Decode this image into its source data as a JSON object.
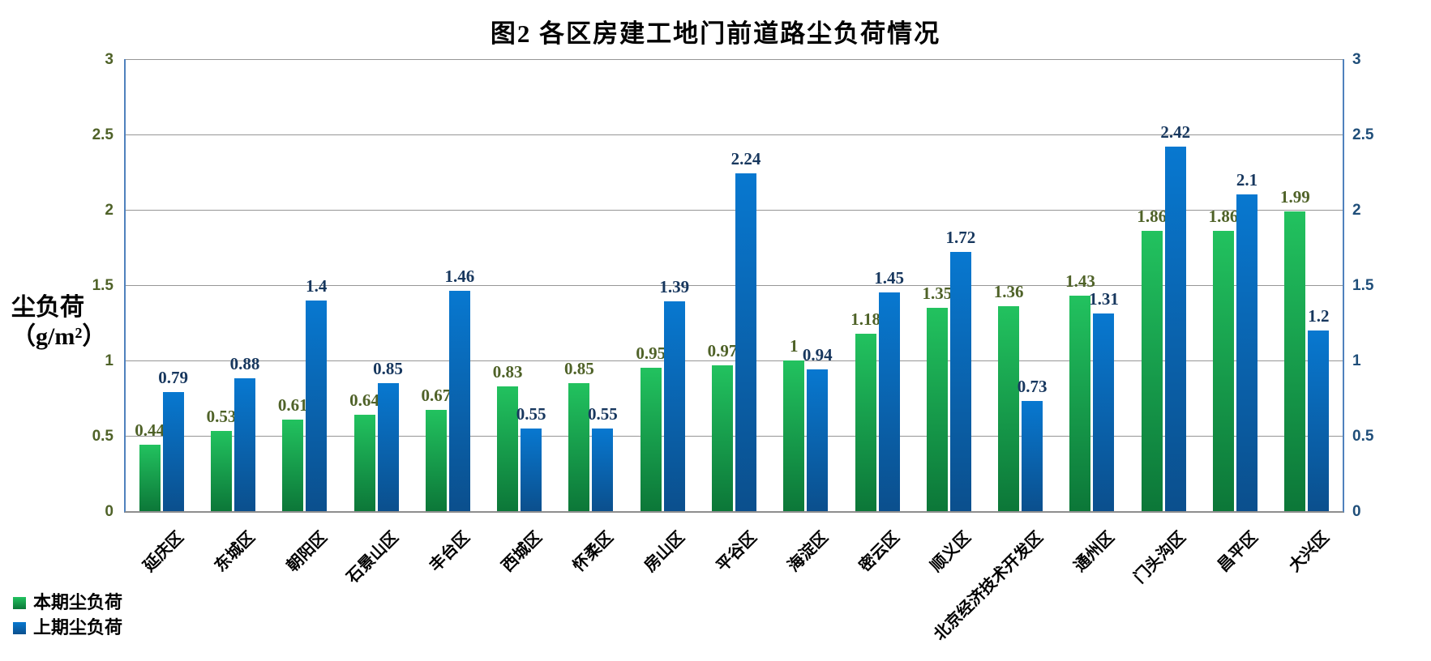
{
  "title": "图2  各区房建工地门前道路尘负荷情况",
  "y_axis": {
    "title_line1": "尘负荷",
    "title_line2": "（g/m²）",
    "left_tick_color": "#4f6228",
    "right_tick_color": "#1f4e79"
  },
  "colors": {
    "axis_line_blue": "#4f81bd",
    "gridline_gray": "#969696",
    "green_bar_top": "#22c25f",
    "green_bar_bottom": "#0c7738",
    "blue_bar_top": "#0878d0",
    "blue_bar_bottom": "#0b4f8d",
    "green_label_text": "#4f6228",
    "blue_label_text": "#17375e"
  },
  "chart_data": {
    "type": "bar",
    "title": "图2  各区房建工地门前道路尘负荷情况",
    "xlabel": "",
    "ylabel": "尘负荷（g/m²）",
    "ylim": [
      0,
      3
    ],
    "yticks": [
      0,
      0.5,
      1,
      1.5,
      2,
      2.5,
      3
    ],
    "grid": true,
    "legend_position": "bottom-left",
    "secondary_y_axis": true,
    "categories": [
      "延庆区",
      "东城区",
      "朝阳区",
      "石景山区",
      "丰台区",
      "西城区",
      "怀柔区",
      "房山区",
      "平谷区",
      "海淀区",
      "密云区",
      "顺义区",
      "北京经济技术开发区",
      "通州区",
      "门头沟区",
      "昌平区",
      "大兴区"
    ],
    "series": [
      {
        "name": "本期尘负荷",
        "values": [
          0.44,
          0.53,
          0.61,
          0.64,
          0.67,
          0.83,
          0.85,
          0.95,
          0.97,
          1,
          1.18,
          1.35,
          1.36,
          1.43,
          1.86,
          1.86,
          1.99
        ],
        "bar_class": "bar-green",
        "label_color": "#4f6228"
      },
      {
        "name": "上期尘负荷",
        "values": [
          0.79,
          0.88,
          1.4,
          0.85,
          1.46,
          0.55,
          0.55,
          1.39,
          2.24,
          0.94,
          1.45,
          1.72,
          0.73,
          1.31,
          2.42,
          2.1,
          1.2
        ],
        "bar_class": "bar-blue",
        "label_color": "#17375e"
      }
    ]
  },
  "legend": [
    {
      "label": "本期尘负荷",
      "swatch_class": "bar-green"
    },
    {
      "label": "上期尘负荷",
      "swatch_class": "bar-blue"
    }
  ]
}
